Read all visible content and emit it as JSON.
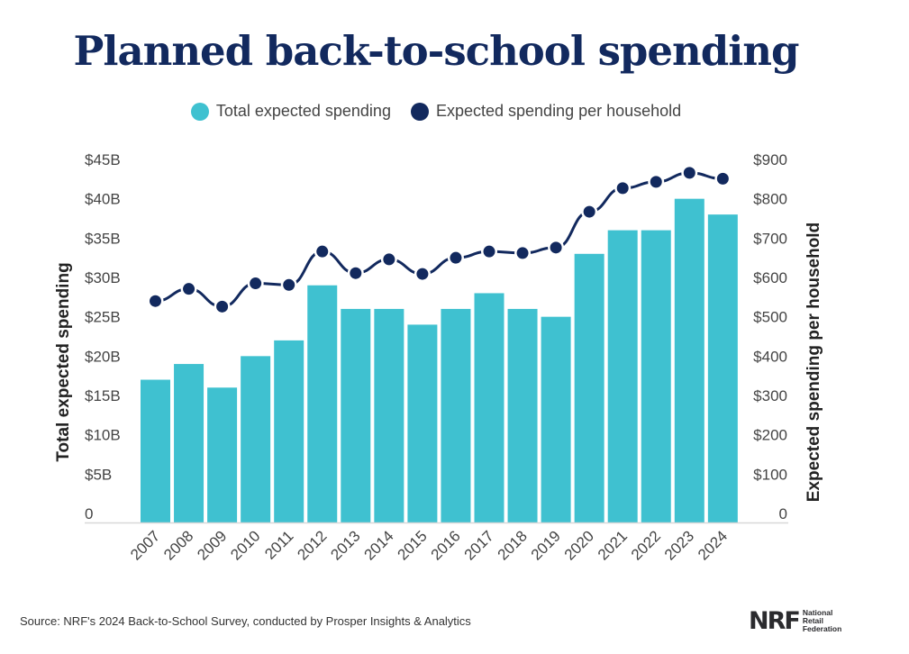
{
  "title": "Planned back-to-school spending",
  "legend": [
    {
      "label": "Total expected spending",
      "color": "#3fc1d0"
    },
    {
      "label": "Expected spending per household",
      "color": "#12295e"
    }
  ],
  "source": "Source: NRF's 2024 Back-to-School Survey, conducted by Prosper Insights & Analytics",
  "logo": {
    "mark": "NRF",
    "text": [
      "National",
      "Retail",
      "Federation"
    ]
  },
  "chart_data": {
    "type": "bar+line",
    "title": "Planned back-to-school spending",
    "categories": [
      "2007",
      "2008",
      "2009",
      "2010",
      "2011",
      "2012",
      "2013",
      "2014",
      "2015",
      "2016",
      "2017",
      "2018",
      "2019",
      "2020",
      "2021",
      "2022",
      "2023",
      "2024"
    ],
    "series": [
      {
        "name": "Total expected spending",
        "type": "bar",
        "axis": "left",
        "unit": "B USD",
        "values": [
          17,
          19,
          16,
          20,
          22,
          29,
          26,
          26,
          24,
          26,
          28,
          26,
          25,
          33,
          36,
          36,
          40,
          38
        ]
      },
      {
        "name": "Expected spending per household",
        "type": "line",
        "axis": "right",
        "unit": "USD",
        "values": [
          540,
          571,
          526,
          585,
          581,
          666,
          611,
          646,
          609,
          650,
          666,
          662,
          676,
          767,
          827,
          843,
          866,
          851
        ]
      }
    ],
    "ylabel": "Total expected spending",
    "y2label": "Expected spending per household",
    "ylim": [
      0,
      45
    ],
    "y2lim": [
      0,
      900
    ],
    "yticks": [
      "0",
      "$5B",
      "$10B",
      "$15B",
      "$20B",
      "$25B",
      "$30B",
      "$35B",
      "$40B",
      "$45B"
    ],
    "y2ticks": [
      "0",
      "$100",
      "$200",
      "$300",
      "$400",
      "$500",
      "$600",
      "$700",
      "$800",
      "$900"
    ],
    "grid": false,
    "legend_position": "top-center"
  }
}
